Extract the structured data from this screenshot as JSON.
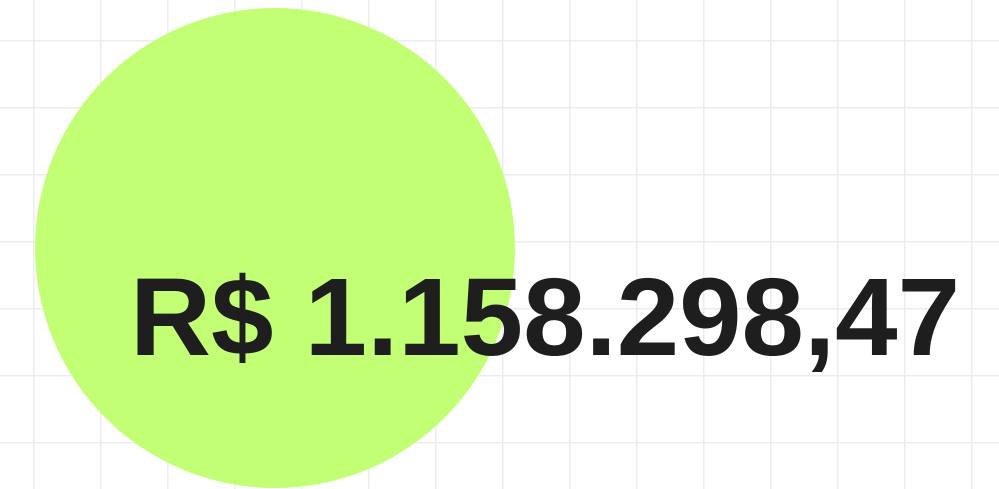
{
  "amount": "R$ 1.158.298,47"
}
